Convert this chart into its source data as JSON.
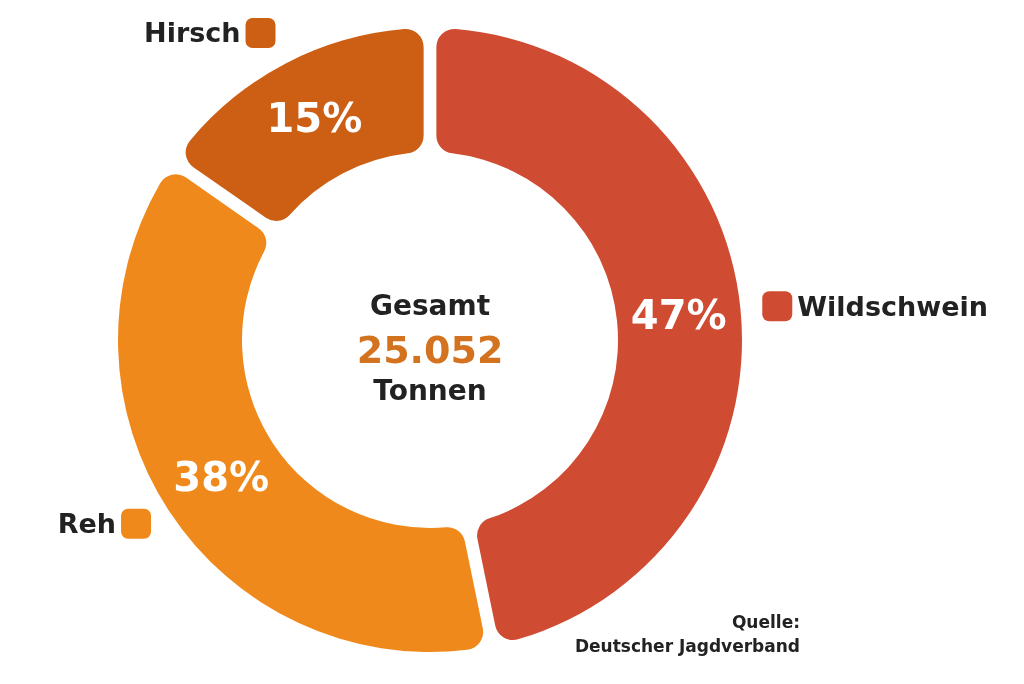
{
  "chart_data": {
    "type": "donut",
    "categories": [
      "Wildschwein",
      "Reh",
      "Hirsch"
    ],
    "values": [
      47,
      38,
      15
    ],
    "colors": [
      "#cf4b31",
      "#f0891b",
      "#cd5f14"
    ],
    "value_labels": [
      "47%",
      "38%",
      "15%"
    ],
    "legend": "left",
    "annotations": [
      "Gesamt",
      "25.052",
      "Tonnen",
      "Quelle:",
      "Deutscher Jagdverband"
    ]
  }
}
